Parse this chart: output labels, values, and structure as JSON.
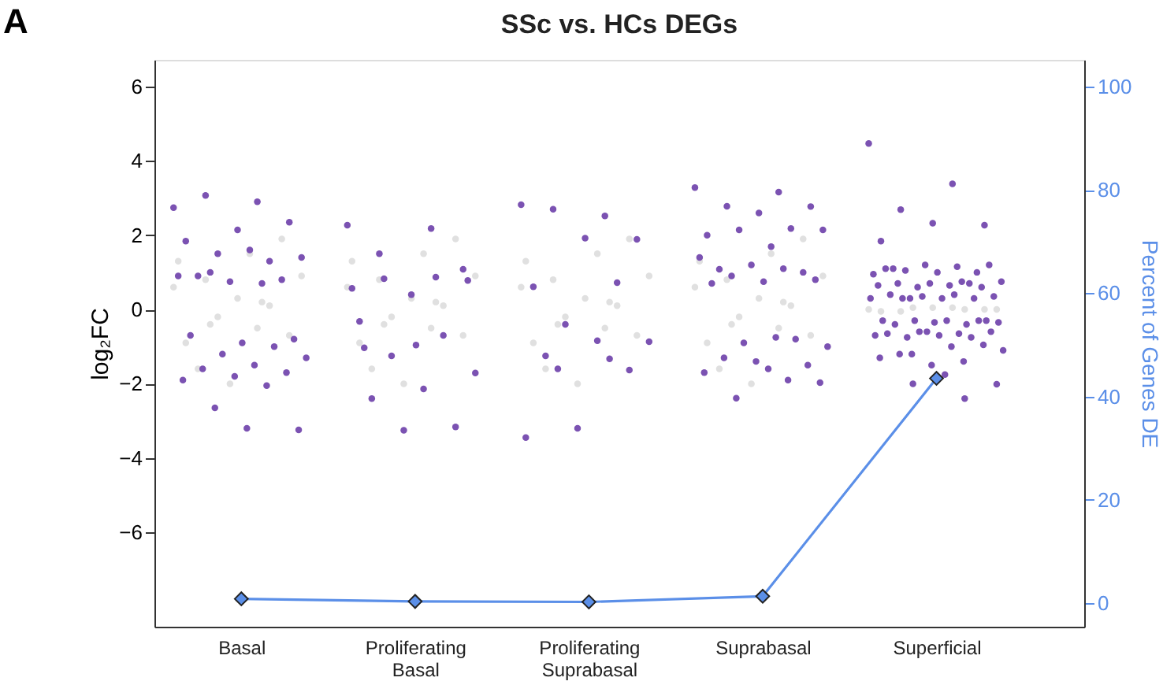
{
  "chart_data": {
    "type": "scatter",
    "title": "SSc vs. HCs DEGs",
    "annotations": [
      "A"
    ],
    "ylabel": "log₂FC",
    "y2label": "Percent of Genes DE",
    "categories": [
      "Basal",
      "Proliferating Basal",
      "Proliferating Suprabasal",
      "Suprabasal",
      "Superficial"
    ],
    "ylim": [
      -8.54,
      6.72
    ],
    "yticks": [
      -6,
      -4,
      -2,
      0,
      2,
      4,
      6
    ],
    "y2lim": [
      -4.6,
      105.2
    ],
    "y2ticks": [
      0,
      20,
      40,
      60,
      80,
      100
    ],
    "grid": false,
    "marker": "circle",
    "series": [
      {
        "color": "#e0e0e0",
        "x": [
          "Basal",
          "Basal",
          "Basal",
          "Basal",
          "Basal",
          "Basal",
          "Basal",
          "Basal",
          "Basal",
          "Basal",
          "Basal",
          "Basal",
          "Basal",
          "Basal",
          "Basal",
          "Basal",
          "Proliferating Basal",
          "Proliferating Basal",
          "Proliferating Basal",
          "Proliferating Basal",
          "Proliferating Basal",
          "Proliferating Basal",
          "Proliferating Basal",
          "Proliferating Basal",
          "Proliferating Basal",
          "Proliferating Basal",
          "Proliferating Basal",
          "Proliferating Basal",
          "Proliferating Basal",
          "Proliferating Basal",
          "Proliferating Basal",
          "Proliferating Basal",
          "Proliferating Suprabasal",
          "Proliferating Suprabasal",
          "Proliferating Suprabasal",
          "Proliferating Suprabasal",
          "Proliferating Suprabasal",
          "Proliferating Suprabasal",
          "Proliferating Suprabasal",
          "Proliferating Suprabasal",
          "Proliferating Suprabasal",
          "Proliferating Suprabasal",
          "Proliferating Suprabasal",
          "Proliferating Suprabasal",
          "Proliferating Suprabasal",
          "Proliferating Suprabasal",
          "Proliferating Suprabasal",
          "Proliferating Suprabasal",
          "Suprabasal",
          "Suprabasal",
          "Suprabasal",
          "Suprabasal",
          "Suprabasal",
          "Suprabasal",
          "Suprabasal",
          "Suprabasal",
          "Suprabasal",
          "Suprabasal",
          "Suprabasal",
          "Suprabasal",
          "Suprabasal",
          "Suprabasal",
          "Suprabasal",
          "Suprabasal",
          "Superficial",
          "Superficial",
          "Superficial",
          "Superficial",
          "Superficial",
          "Superficial",
          "Superficial",
          "Superficial",
          "Superficial"
        ],
        "values": [
          0.6,
          -0.5,
          0.8,
          -0.7,
          0.3,
          -0.9,
          0.1,
          -0.2,
          0.9,
          1.5,
          -1.6,
          1.9,
          -2.0,
          1.3,
          0.2,
          -0.4,
          0.6,
          -0.5,
          0.8,
          -0.7,
          0.3,
          -0.9,
          0.1,
          -0.2,
          0.9,
          1.5,
          -1.6,
          1.9,
          -2.0,
          1.3,
          0.2,
          -0.4,
          0.6,
          -0.5,
          0.8,
          -0.7,
          0.3,
          -0.9,
          0.1,
          -0.2,
          0.9,
          1.5,
          -1.6,
          1.9,
          -2.0,
          1.3,
          0.2,
          -0.4,
          0.6,
          -0.5,
          0.8,
          -0.7,
          0.3,
          -0.9,
          0.1,
          -0.2,
          0.9,
          1.5,
          -1.6,
          1.9,
          -2.0,
          1.3,
          0.2,
          -0.4,
          0.0,
          0.05,
          -0.05,
          0.0,
          0.05,
          -0.05,
          0.0,
          0.05,
          0.0
        ]
      },
      {
        "color": "#7b52b2",
        "x": [
          "Basal",
          "Basal",
          "Basal",
          "Basal",
          "Basal",
          "Basal",
          "Basal",
          "Basal",
          "Basal",
          "Basal",
          "Basal",
          "Basal",
          "Basal",
          "Basal",
          "Basal",
          "Basal",
          "Basal",
          "Basal",
          "Basal",
          "Basal",
          "Basal",
          "Basal",
          "Basal",
          "Basal",
          "Basal",
          "Basal",
          "Basal",
          "Basal",
          "Basal",
          "Basal",
          "Basal",
          "Proliferating Basal",
          "Proliferating Basal",
          "Proliferating Basal",
          "Proliferating Basal",
          "Proliferating Basal",
          "Proliferating Basal",
          "Proliferating Basal",
          "Proliferating Basal",
          "Proliferating Basal",
          "Proliferating Basal",
          "Proliferating Basal",
          "Proliferating Basal",
          "Proliferating Basal",
          "Proliferating Basal",
          "Proliferating Basal",
          "Proliferating Basal",
          "Proliferating Basal",
          "Proliferating Basal",
          "Proliferating Basal",
          "Proliferating Suprabasal",
          "Proliferating Suprabasal",
          "Proliferating Suprabasal",
          "Proliferating Suprabasal",
          "Proliferating Suprabasal",
          "Proliferating Suprabasal",
          "Proliferating Suprabasal",
          "Proliferating Suprabasal",
          "Proliferating Suprabasal",
          "Proliferating Suprabasal",
          "Proliferating Suprabasal",
          "Proliferating Suprabasal",
          "Proliferating Suprabasal",
          "Proliferating Suprabasal",
          "Proliferating Suprabasal",
          "Proliferating Suprabasal",
          "Suprabasal",
          "Suprabasal",
          "Suprabasal",
          "Suprabasal",
          "Suprabasal",
          "Suprabasal",
          "Suprabasal",
          "Suprabasal",
          "Suprabasal",
          "Suprabasal",
          "Suprabasal",
          "Suprabasal",
          "Suprabasal",
          "Suprabasal",
          "Suprabasal",
          "Suprabasal",
          "Suprabasal",
          "Suprabasal",
          "Suprabasal",
          "Suprabasal",
          "Suprabasal",
          "Suprabasal",
          "Suprabasal",
          "Suprabasal",
          "Suprabasal",
          "Suprabasal",
          "Suprabasal",
          "Suprabasal",
          "Suprabasal",
          "Suprabasal",
          "Suprabasal",
          "Superficial",
          "Superficial",
          "Superficial",
          "Superficial",
          "Superficial",
          "Superficial",
          "Superficial",
          "Superficial",
          "Superficial",
          "Superficial",
          "Superficial",
          "Superficial",
          "Superficial",
          "Superficial",
          "Superficial",
          "Superficial",
          "Superficial",
          "Superficial",
          "Superficial",
          "Superficial",
          "Superficial",
          "Superficial",
          "Superficial",
          "Superficial",
          "Superficial",
          "Superficial",
          "Superficial",
          "Superficial",
          "Superficial",
          "Superficial",
          "Superficial",
          "Superficial",
          "Superficial",
          "Superficial",
          "Superficial",
          "Superficial",
          "Superficial",
          "Superficial",
          "Superficial",
          "Superficial",
          "Superficial",
          "Superficial",
          "Superficial",
          "Superficial",
          "Superficial",
          "Superficial",
          "Superficial",
          "Superficial",
          "Superficial",
          "Superficial",
          "Superficial",
          "Superficial",
          "Superficial",
          "Superficial",
          "Superficial",
          "Superficial",
          "Superficial",
          "Superficial",
          "Superficial",
          "Superficial",
          "Superficial",
          "Superficial",
          "Superficial"
        ],
        "values": [
          2.74,
          2.9,
          3.07,
          2.35,
          2.14,
          1.84,
          1.3,
          1.5,
          1.4,
          1.6,
          0.9,
          0.8,
          0.75,
          0.9,
          0.7,
          1.0,
          -0.8,
          -0.9,
          -0.7,
          -1.0,
          -1.2,
          -1.3,
          -1.5,
          -1.6,
          -1.7,
          -1.8,
          -1.9,
          -2.05,
          -2.65,
          -3.24,
          -3.2,
          2.27,
          2.18,
          1.5,
          1.08,
          0.4,
          -0.32,
          -0.7,
          -1.25,
          -1.71,
          -2.14,
          -2.4,
          -3.16,
          -3.25,
          0.57,
          0.87,
          0.83,
          0.78,
          -0.96,
          -1.03,
          2.82,
          2.52,
          2.7,
          1.89,
          1.92,
          0.61,
          0.72,
          -0.4,
          -0.87,
          -0.84,
          -1.25,
          -1.63,
          -3.2,
          -3.45,
          -1.33,
          -1.6,
          3.28,
          3.16,
          2.78,
          2.77,
          2.6,
          2.0,
          2.18,
          2.14,
          2.14,
          1.69,
          1.08,
          1.0,
          1.2,
          1.4,
          1.1,
          0.9,
          0.8,
          0.75,
          0.7,
          -0.8,
          -0.9,
          -1.0,
          -0.75,
          -1.3,
          -1.5,
          -1.4,
          -1.7,
          -1.9,
          -2.39,
          -1.97,
          -1.6,
          4.47,
          3.38,
          2.69,
          2.27,
          2.32,
          1.84,
          -2.4,
          -2.0,
          -2.01,
          -1.75,
          1.1,
          1.0,
          1.2,
          0.95,
          1.15,
          1.05,
          1.2,
          1.0,
          1.1,
          0.7,
          0.6,
          0.75,
          0.65,
          0.7,
          0.6,
          0.7,
          0.65,
          0.75,
          0.3,
          0.35,
          0.3,
          0.4,
          0.3,
          0.35,
          0.3,
          0.4,
          0.3,
          -0.3,
          -0.35,
          -0.3,
          -0.4,
          -0.3,
          -0.35,
          -0.3,
          -0.4,
          -0.3,
          -0.6,
          -0.7,
          -0.65,
          -0.75,
          -0.6,
          -0.7,
          -0.65,
          -0.75,
          -0.6,
          -1.1,
          -1.0,
          -1.2,
          -0.95,
          -1.5,
          -1.3,
          -1.4,
          -1.2
        ]
      },
      {
        "type": "line",
        "axis": "y2",
        "marker": "diamond",
        "line_style": "solid",
        "color": "#5b8fe8",
        "values": [
          0.8,
          0.3,
          0.2,
          1.3,
          43.5
        ]
      }
    ]
  }
}
